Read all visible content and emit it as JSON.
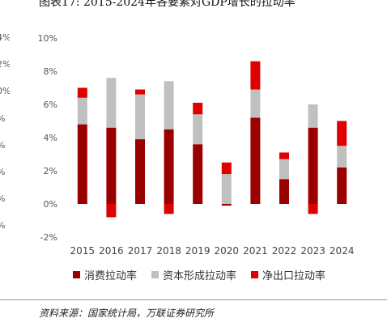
{
  "title": "图表17:  2015-2024年各要素对GDP增长的拉动率",
  "source": "资料来源：国家统计局，万联证券研究所",
  "left_clipped_ticks": [
    "4%",
    "2%",
    "0%",
    "%",
    "%",
    "%",
    "%",
    "%"
  ],
  "chart_data": {
    "type": "bar",
    "stacked": true,
    "categories": [
      "2015",
      "2016",
      "2017",
      "2018",
      "2019",
      "2020",
      "2021",
      "2022",
      "2023",
      "2024"
    ],
    "series": [
      {
        "name": "消费拉动率",
        "color": "#9b0000",
        "values": [
          4.8,
          4.6,
          3.9,
          4.5,
          3.6,
          -0.1,
          5.2,
          1.5,
          4.6,
          2.2
        ]
      },
      {
        "name": "资本形成拉动率",
        "color": "#c0c0c0",
        "values": [
          1.6,
          3.0,
          2.7,
          2.9,
          1.8,
          1.8,
          1.7,
          1.2,
          1.4,
          1.3
        ]
      },
      {
        "name": "净出口拉动率",
        "color": "#e00000",
        "values": [
          0.6,
          -0.8,
          0.3,
          -0.6,
          0.7,
          0.7,
          1.7,
          0.4,
          -0.6,
          1.5
        ]
      }
    ],
    "ylim": [
      -2,
      10
    ],
    "yticks": [
      -2,
      0,
      2,
      4,
      6,
      8,
      10
    ],
    "ytick_labels": [
      "-2%",
      "0%",
      "2%",
      "4%",
      "6%",
      "8%",
      "10%"
    ],
    "grid": false,
    "legend": "bottom"
  }
}
